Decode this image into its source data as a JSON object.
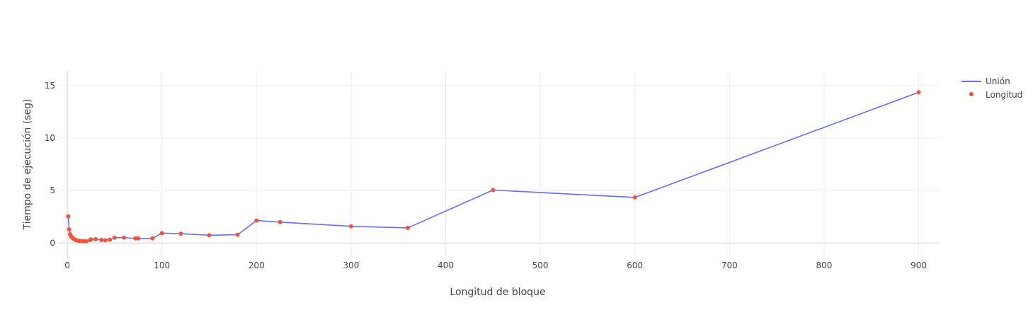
{
  "chart_data": {
    "type": "line",
    "title": "",
    "xlabel": "Longitud de bloque",
    "ylabel": "Tiempo de ejecución (seg)",
    "xlim": [
      -9,
      922
    ],
    "ylim": [
      -1.45,
      16.4
    ],
    "x_ticks": [
      0,
      100,
      200,
      300,
      400,
      500,
      600,
      700,
      800,
      900
    ],
    "y_ticks": [
      0,
      5,
      10,
      15
    ],
    "grid": true,
    "legend_position": "top-right",
    "colors": {
      "line": "#636efa",
      "markers": "#ef553b",
      "grid": "#eeeeee",
      "zeroline": "#e6e6e6"
    },
    "x": [
      1,
      2,
      3,
      4,
      5,
      6,
      8,
      9,
      10,
      12,
      15,
      18,
      20,
      24,
      25,
      30,
      36,
      40,
      45,
      50,
      60,
      72,
      75,
      90,
      100,
      120,
      150,
      180,
      200,
      225,
      300,
      360,
      450,
      600,
      900
    ],
    "series": [
      {
        "name": "Unión",
        "mode": "lines",
        "values": [
          2.55,
          1.3,
          0.85,
          0.65,
          0.55,
          0.45,
          0.35,
          0.3,
          0.27,
          0.22,
          0.2,
          0.18,
          0.17,
          0.3,
          0.35,
          0.38,
          0.3,
          0.28,
          0.33,
          0.52,
          0.52,
          0.45,
          0.45,
          0.45,
          0.95,
          0.9,
          0.75,
          0.8,
          2.15,
          2.0,
          1.6,
          1.45,
          5.05,
          4.35,
          14.35
        ]
      },
      {
        "name": "Longitud",
        "mode": "markers",
        "values": [
          2.55,
          1.3,
          0.85,
          0.65,
          0.55,
          0.45,
          0.35,
          0.3,
          0.27,
          0.22,
          0.2,
          0.18,
          0.17,
          0.3,
          0.35,
          0.38,
          0.3,
          0.28,
          0.33,
          0.52,
          0.52,
          0.45,
          0.45,
          0.45,
          0.95,
          0.9,
          0.75,
          0.8,
          2.15,
          2.0,
          1.6,
          1.45,
          5.05,
          4.35,
          14.35
        ]
      }
    ]
  }
}
